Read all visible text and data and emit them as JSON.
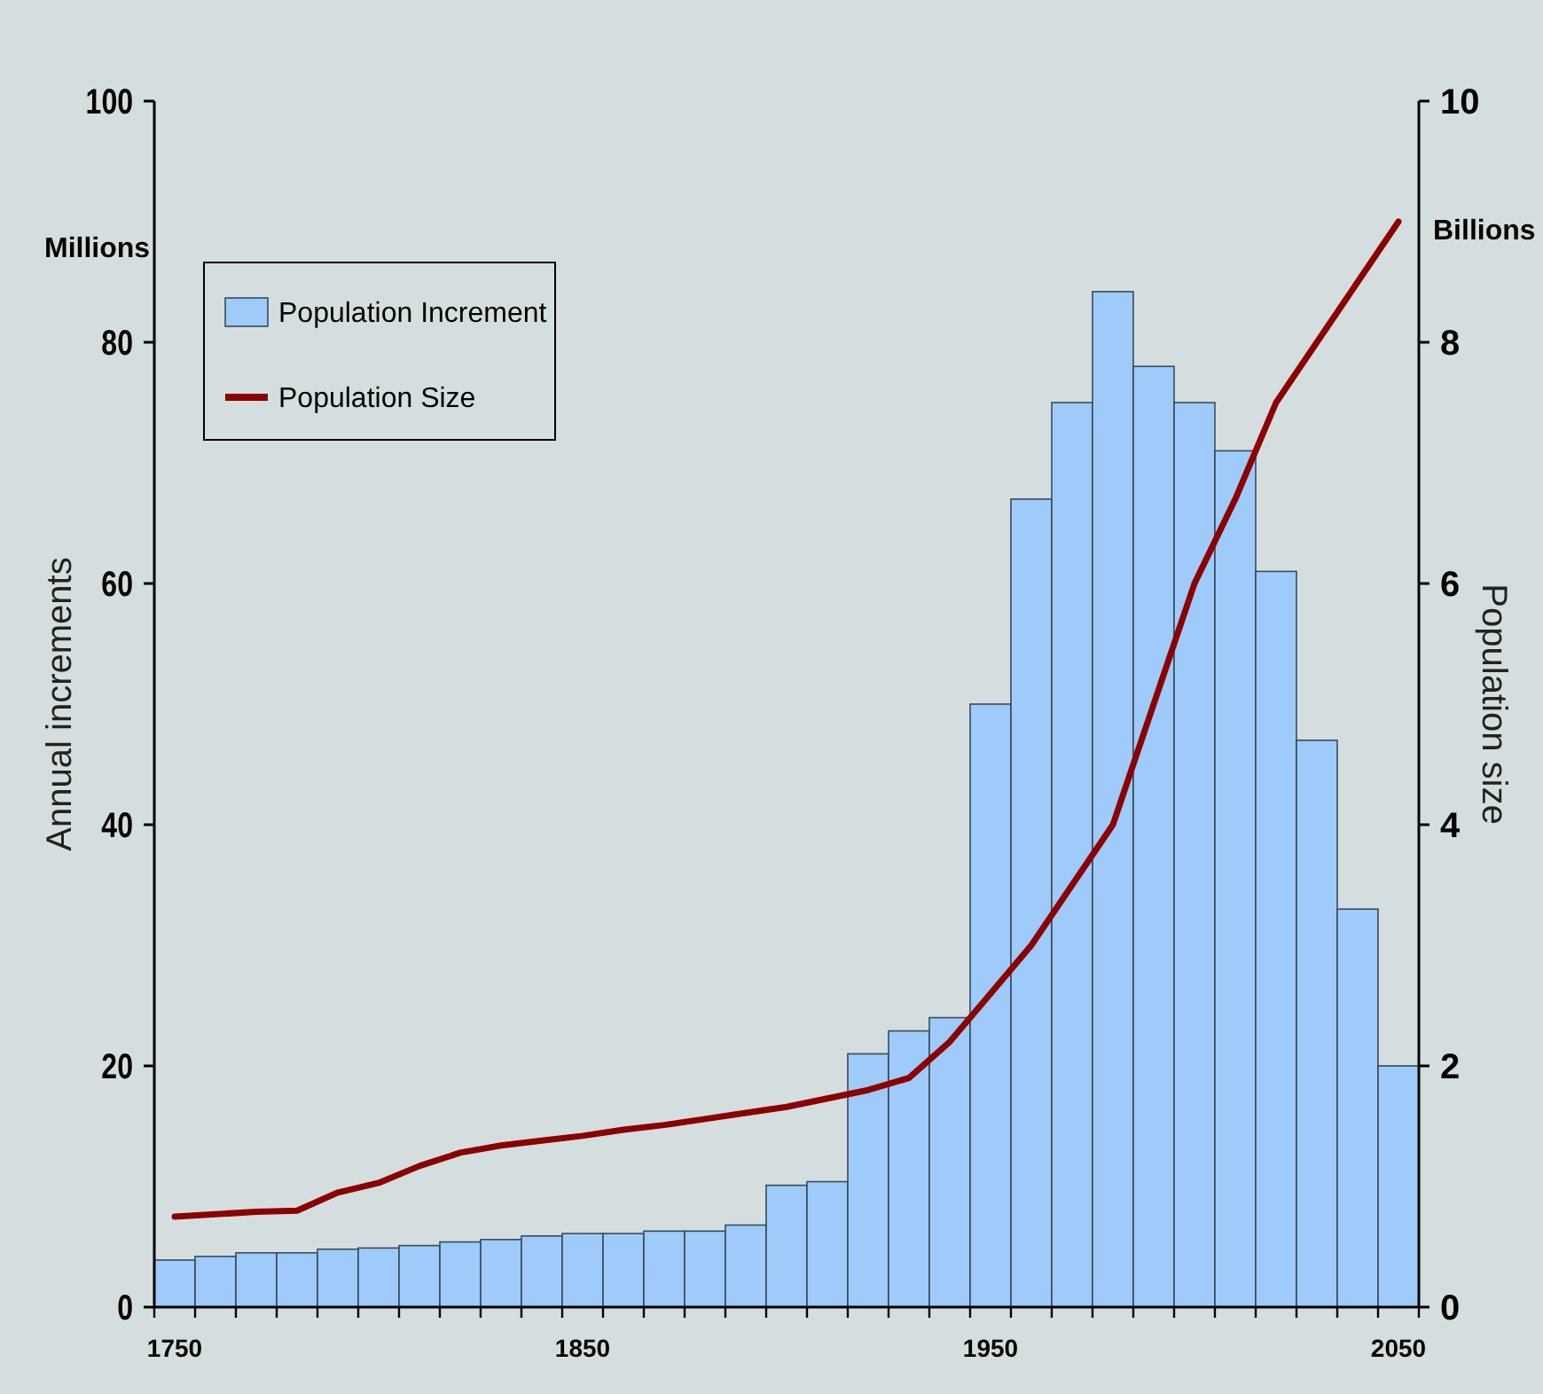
{
  "chart_data": {
    "type": "bar",
    "xlabel": null,
    "ylabel": "Annual increments",
    "y2label": "Population size",
    "annotations": [
      "Millions",
      "Billions"
    ],
    "categories": [
      "1750",
      null,
      null,
      null,
      null,
      null,
      null,
      null,
      null,
      null,
      "1850",
      null,
      null,
      null,
      null,
      null,
      null,
      null,
      null,
      null,
      "1950",
      null,
      null,
      null,
      null,
      null,
      null,
      null,
      null,
      null,
      "2050"
    ],
    "series": [
      {
        "name": "Population Increment",
        "color": "#9ecbfa",
        "values": [
          3.9,
          4.2,
          4.5,
          4.5,
          4.8,
          4.9,
          5.1,
          5.4,
          5.6,
          5.9,
          6.1,
          6.1,
          6.3,
          6.3,
          6.8,
          10.1,
          10.4,
          21,
          22.9,
          24,
          50,
          67,
          75,
          84.2,
          78,
          75,
          71,
          61,
          47,
          33,
          20
        ]
      },
      {
        "name": "Population Size",
        "type": "line",
        "axis": "y2",
        "color": "#8b0000",
        "values": [
          0.75,
          0.77,
          0.79,
          0.8,
          0.95,
          1.03,
          1.17,
          1.28,
          1.34,
          1.38,
          1.42,
          1.47,
          1.51,
          1.56,
          1.61,
          1.66,
          1.73,
          1.8,
          1.9,
          2.2,
          2.6,
          3.0,
          3.5,
          4.0,
          5.0,
          6.0,
          6.7,
          7.5,
          8.0,
          8.5,
          9.0
        ]
      }
    ],
    "ylim": [
      0,
      100
    ],
    "yticks": [
      0,
      20,
      40,
      60,
      80,
      100
    ],
    "y2lim": [
      0,
      10
    ],
    "y2ticks": [
      0,
      2,
      4,
      6,
      8,
      10
    ],
    "grid": false,
    "legend": "top left",
    "marker": "none",
    "line_style": "solid"
  }
}
